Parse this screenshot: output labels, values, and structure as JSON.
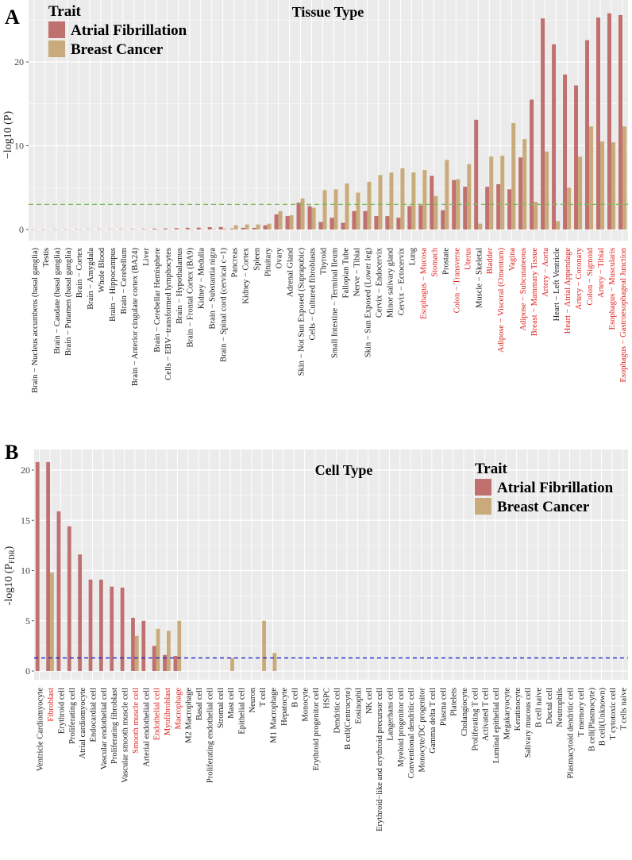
{
  "chart_data": [
    {
      "panel_label": "A",
      "type": "bar",
      "title": "Tissue Type",
      "xlabel": "",
      "ylabel": "−log10 (P)",
      "ylim": [
        0,
        26
      ],
      "yticks": [
        0,
        10,
        20
      ],
      "legend_title": "Trait",
      "legend_placement": "top-left",
      "grid": true,
      "threshold": 3.0,
      "categories": [
        "Brain − Nucleus accumbens (basal ganglia)",
        "Testis",
        "Brain − Caudate (basal ganglia)",
        "Brain − Putamen (basal ganglia)",
        "Brain − Cortex",
        "Brain − Amygdala",
        "Whole Blood",
        "Brain − Hippocampus",
        "Brain − Cerebellum",
        "Brain − Anterior cingulate cortex (BA24)",
        "Liver",
        "Brain − Cerebellar Hemisphere",
        "Cells − EBV−transformed lymphocytes",
        "Brain − Hypothalamus",
        "Brain − Frontal Cortex (BA9)",
        "Kidney − Medulla",
        "Brain − Substantia nigra",
        "Brain − Spinal cord (cervical c−1)",
        "Pancreas",
        "Kidney − Cortex",
        "Spleen",
        "Pituitary",
        "Ovary",
        "Adrenal Gland",
        "Skin − Not Sun Exposed (Suprapubic)",
        "Cells − Cultured fibroblasts",
        "Thyroid",
        "Small Intestine − Terminal Ileum",
        "Fallopian Tube",
        "Nerve − Tibial",
        "Skin − Sun Exposed (Lower leg)",
        "Cervix − Endocervix",
        "Minor salivary gland",
        "Cervix − Ectocervix",
        "Lung",
        "Esophagus − Mucosa",
        "Stomach",
        "Prostate",
        "Colon − Transverse",
        "Uterus",
        "Muscle − Skeletal",
        "Bladder",
        "Adipose − Visceral (Omentum)",
        "Vagina",
        "Adipose − Subcutaneous",
        "Breast − Mammary Tissue",
        "Artery − Aorta",
        "Heart − Left Ventricle",
        "Heart − Atrial Appendage",
        "Artery − Coronary",
        "Colon − Sigmoid",
        "Artery − Tibial",
        "Esophagus − Muscularis",
        "Esophagus − Gastroesophageal Junction"
      ],
      "highlighted": [
        0,
        0,
        0,
        0,
        0,
        0,
        0,
        0,
        0,
        0,
        0,
        0,
        0,
        0,
        0,
        0,
        0,
        0,
        0,
        0,
        0,
        0,
        0,
        0,
        0,
        0,
        0,
        0,
        0,
        0,
        0,
        0,
        0,
        0,
        0,
        1,
        1,
        0,
        1,
        1,
        0,
        1,
        1,
        1,
        1,
        1,
        1,
        0,
        1,
        1,
        1,
        1,
        1,
        1
      ],
      "series": [
        {
          "name": "Atrial Fibrillation",
          "color": "#c0706e",
          "values": [
            0.01,
            0.01,
            0.02,
            0.02,
            0.03,
            0.03,
            0.04,
            0.04,
            0.05,
            0.05,
            0.06,
            0.1,
            0.12,
            0.15,
            0.2,
            0.22,
            0.28,
            0.3,
            0.1,
            0.2,
            0.2,
            0.5,
            1.8,
            1.6,
            3.2,
            2.8,
            0.9,
            1.4,
            0.8,
            2.2,
            2.2,
            1.6,
            1.6,
            1.4,
            2.8,
            2.9,
            6.4,
            2.3,
            5.9,
            5.1,
            13.1,
            5.1,
            5.4,
            4.8,
            8.6,
            15.5,
            25.2,
            22.1,
            18.5,
            17.2,
            22.6,
            25.3,
            25.8,
            25.6
          ]
        },
        {
          "name": "Breast Cancer",
          "color": "#c9aa7b",
          "values": [
            0.01,
            0.01,
            0.01,
            0.01,
            0.01,
            0.01,
            0.01,
            0.01,
            0.01,
            0.01,
            0.01,
            0.01,
            0.01,
            0.01,
            0.01,
            0.02,
            0.05,
            0.1,
            0.5,
            0.6,
            0.6,
            0.7,
            2.2,
            1.7,
            3.7,
            2.6,
            4.7,
            4.8,
            5.5,
            4.4,
            5.7,
            6.5,
            6.8,
            7.3,
            6.8,
            7.1,
            4.0,
            8.3,
            6.0,
            7.8,
            0.7,
            8.7,
            8.8,
            12.7,
            10.8,
            3.3,
            9.3,
            1.0,
            5.0,
            8.7,
            12.3,
            10.5,
            10.4,
            12.3
          ]
        }
      ]
    },
    {
      "panel_label": "B",
      "type": "bar",
      "title": "Cell Type",
      "xlabel": "",
      "ylabel_main": "-log10 (P",
      "ylabel_sub": "FDR",
      "ylabel_close": ")",
      "ylim": [
        0,
        22
      ],
      "yticks": [
        0,
        5,
        10,
        15,
        20
      ],
      "legend_title": "Trait",
      "legend_placement": "top-right",
      "grid": true,
      "threshold": 1.3,
      "categories": [
        "Ventricle Cardiomyocyte",
        "Fibroblast",
        "Erythroid cell",
        "Proliferating cell",
        "Atrial cardiomyocyte",
        "Endocardial cell",
        "Vascular endothelial cell",
        "Proliferating fibroblast",
        "Vascular smooth muscle cell",
        "Smooth muscle cell",
        "Arterial endothelial cell",
        "Endothelial cell",
        "Myofibroblast",
        "Macrophage",
        "M2 Macrophage",
        "Basal cell",
        "Proliferating endothelial cell",
        "Stromal cell",
        "Mast cell",
        "Epithelial cell",
        "Neuron",
        "T cell",
        "M1 Macrophage",
        "Hepatocyte",
        "B cell",
        "Monocyte",
        "Erythroid progenitor cell",
        "HSPC",
        "Dendritic cell",
        "B cell(Centrocyte)",
        "Eosinophil",
        "NK cell",
        "Erythroid−like and erythroid precursor cell",
        "Langerhans cell",
        "Myeloid progenitor cell",
        "Conventional dendritic cell",
        "Monocyte/DC progenitor",
        "Gamma delta T cell",
        "Plasma cell",
        "Platelets",
        "Cholangiocyte",
        "Proliferating T cell",
        "Activated T cell",
        "Luminal epithelial cell",
        "Megakaryocyte",
        "Keratinocyte",
        "Salivary mucous cell",
        "B cell naive",
        "Ductal cell",
        "Neutrophils",
        "Plasmacytoid dendritic cell",
        "T memory cell",
        "B cell(Plasmocyte)",
        "B cell(Unknown)",
        "T cytotoxic cell",
        "T cells naive"
      ],
      "highlighted": [
        0,
        1,
        0,
        0,
        0,
        0,
        0,
        0,
        0,
        1,
        0,
        1,
        1,
        1,
        0,
        0,
        0,
        0,
        0,
        0,
        0,
        0,
        0,
        0,
        0,
        0,
        0,
        0,
        0,
        0,
        0,
        0,
        0,
        0,
        0,
        0,
        0,
        0,
        0,
        0,
        0,
        0,
        0,
        0,
        0,
        0,
        0,
        0,
        0,
        0,
        0,
        0,
        0,
        0,
        0,
        0
      ],
      "series": [
        {
          "name": "Atrial Fibrillation",
          "color": "#c0706e",
          "values": [
            20.8,
            20.8,
            15.9,
            14.4,
            11.6,
            9.1,
            9.1,
            8.4,
            8.3,
            5.3,
            5.0,
            2.5,
            1.6,
            1.5,
            0,
            0,
            0,
            0,
            0,
            0,
            0,
            0,
            0,
            0,
            0,
            0,
            0,
            0,
            0,
            0,
            0,
            0,
            0,
            0,
            0,
            0,
            0,
            0,
            0,
            0,
            0,
            0,
            0,
            0,
            0,
            0,
            0,
            0,
            0,
            0,
            0,
            0,
            0,
            0,
            0,
            0
          ]
        },
        {
          "name": "Breast Cancer",
          "color": "#c9aa7b",
          "values": [
            0,
            9.8,
            0,
            0,
            0,
            0,
            0,
            0,
            0,
            3.5,
            0,
            4.2,
            4.0,
            5.0,
            0,
            0,
            0,
            0,
            1.3,
            0,
            0,
            5.0,
            1.8,
            0,
            0,
            0,
            0,
            0,
            0,
            0,
            0,
            0,
            0,
            0,
            0,
            0,
            0,
            0,
            0,
            0,
            0,
            0,
            0,
            0,
            0,
            0,
            0,
            0,
            0,
            0,
            0,
            0,
            0,
            0,
            0,
            0
          ]
        }
      ]
    }
  ]
}
